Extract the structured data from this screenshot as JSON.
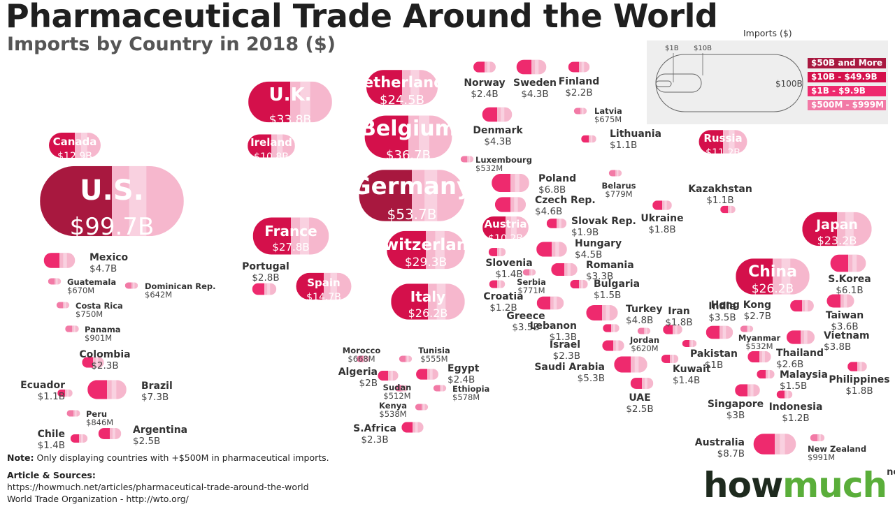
{
  "header": {
    "title": "Pharmaceutical Trade Around the World",
    "subtitle": "Imports by Country in 2018 ($)"
  },
  "legend": {
    "title": "Imports ($)",
    "scale_labels": [
      "$1B",
      "$10B",
      "$100B"
    ],
    "tiers": [
      {
        "label": "$50B and More",
        "color": "#a8183f"
      },
      {
        "label": "$10B - $49.9B",
        "color": "#d4104b"
      },
      {
        "label": "$1B - $9.9B",
        "color": "#ee2a6e"
      },
      {
        "label": "$500M - $999M",
        "color": "#f27aa6"
      }
    ]
  },
  "chart_data": {
    "type": "bubble-map",
    "title": "Pharmaceutical Trade Around the World",
    "subtitle": "Imports by Country in 2018 ($)",
    "unit": "USD billions",
    "series": [
      {
        "country": "U.S.",
        "label": "$99.7B",
        "value": 99.7
      },
      {
        "country": "Canada",
        "label": "$12.9B",
        "value": 12.9
      },
      {
        "country": "Mexico",
        "label": "$4.7B",
        "value": 4.7
      },
      {
        "country": "Guatemala",
        "label": "$670M",
        "value": 0.67
      },
      {
        "country": "Dominican Rep.",
        "label": "$642M",
        "value": 0.642
      },
      {
        "country": "Costa Rica",
        "label": "$750M",
        "value": 0.75
      },
      {
        "country": "Panama",
        "label": "$901M",
        "value": 0.901
      },
      {
        "country": "Colombia",
        "label": "$2.3B",
        "value": 2.3
      },
      {
        "country": "Ecuador",
        "label": "$1.1B",
        "value": 1.1
      },
      {
        "country": "Brazil",
        "label": "$7.3B",
        "value": 7.3
      },
      {
        "country": "Peru",
        "label": "$846M",
        "value": 0.846
      },
      {
        "country": "Chile",
        "label": "$1.4B",
        "value": 1.4
      },
      {
        "country": "Argentina",
        "label": "$2.5B",
        "value": 2.5
      },
      {
        "country": "U.K.",
        "label": "$33.8B",
        "value": 33.8
      },
      {
        "country": "Ireland",
        "label": "$10.8B",
        "value": 10.8
      },
      {
        "country": "Netherlands",
        "label": "$24.5B",
        "value": 24.5
      },
      {
        "country": "Belgium",
        "label": "$36.7B",
        "value": 36.7
      },
      {
        "country": "Germany",
        "label": "$53.7B",
        "value": 53.7
      },
      {
        "country": "France",
        "label": "$27.8B",
        "value": 27.8
      },
      {
        "country": "Portugal",
        "label": "$2.8B",
        "value": 2.8
      },
      {
        "country": "Spain",
        "label": "$14.7B",
        "value": 14.7
      },
      {
        "country": "Switzerland",
        "label": "$29.3B",
        "value": 29.3
      },
      {
        "country": "Italy",
        "label": "$26.2B",
        "value": 26.2
      },
      {
        "country": "Austria",
        "label": "$10.2B",
        "value": 10.2
      },
      {
        "country": "Luxembourg",
        "label": "$532M",
        "value": 0.532
      },
      {
        "country": "Norway",
        "label": "$2.4B",
        "value": 2.4
      },
      {
        "country": "Sweden",
        "label": "$4.3B",
        "value": 4.3
      },
      {
        "country": "Finland",
        "label": "$2.2B",
        "value": 2.2
      },
      {
        "country": "Denmark",
        "label": "$4.3B",
        "value": 4.3
      },
      {
        "country": "Latvia",
        "label": "$675M",
        "value": 0.675
      },
      {
        "country": "Lithuania",
        "label": "$1.1B",
        "value": 1.1
      },
      {
        "country": "Russia",
        "label": "$11.2B",
        "value": 11.2
      },
      {
        "country": "Poland",
        "label": "$6.8B",
        "value": 6.8
      },
      {
        "country": "Czech Rep.",
        "label": "$4.6B",
        "value": 4.6
      },
      {
        "country": "Belarus",
        "label": "$779M",
        "value": 0.779
      },
      {
        "country": "Kazakhstan",
        "label": "$1.1B",
        "value": 1.1
      },
      {
        "country": "Ukraine",
        "label": "$1.8B",
        "value": 1.8
      },
      {
        "country": "Slovak Rep.",
        "label": "$1.9B",
        "value": 1.9
      },
      {
        "country": "Hungary",
        "label": "$4.5B",
        "value": 4.5
      },
      {
        "country": "Slovenia",
        "label": "$1.4B",
        "value": 1.4
      },
      {
        "country": "Romania",
        "label": "$3.3B",
        "value": 3.3
      },
      {
        "country": "Serbia",
        "label": "$771M",
        "value": 0.771
      },
      {
        "country": "Bulgaria",
        "label": "$1.5B",
        "value": 1.5
      },
      {
        "country": "Croatia",
        "label": "$1.2B",
        "value": 1.2
      },
      {
        "country": "Greece",
        "label": "$3.5B",
        "value": 3.5
      },
      {
        "country": "Turkey",
        "label": "$4.8B",
        "value": 4.8
      },
      {
        "country": "Lebanon",
        "label": "$1.3B",
        "value": 1.3
      },
      {
        "country": "Israel",
        "label": "$2.3B",
        "value": 2.3
      },
      {
        "country": "Jordan",
        "label": "$620M",
        "value": 0.62
      },
      {
        "country": "Iran",
        "label": "$1.8B",
        "value": 1.8
      },
      {
        "country": "Saudi Arabia",
        "label": "$5.3B",
        "value": 5.3
      },
      {
        "country": "Kuwait",
        "label": "$1.4B",
        "value": 1.4
      },
      {
        "country": "UAE",
        "label": "$2.5B",
        "value": 2.5
      },
      {
        "country": "Pakistan",
        "label": "$1B",
        "value": 1.0
      },
      {
        "country": "India",
        "label": "$3.5B",
        "value": 3.5
      },
      {
        "country": "China",
        "label": "$26.2B",
        "value": 26.2
      },
      {
        "country": "Japan",
        "label": "$23.2B",
        "value": 23.2
      },
      {
        "country": "S.Korea",
        "label": "$6.1B",
        "value": 6.1
      },
      {
        "country": "Hong Kong",
        "label": "$2.7B",
        "value": 2.7
      },
      {
        "country": "Taiwan",
        "label": "$3.6B",
        "value": 3.6
      },
      {
        "country": "Myanmar",
        "label": "$532M",
        "value": 0.532
      },
      {
        "country": "Vietnam",
        "label": "$3.8B",
        "value": 3.8
      },
      {
        "country": "Thailand",
        "label": "$2.6B",
        "value": 2.6
      },
      {
        "country": "Malaysia",
        "label": "$1.5B",
        "value": 1.5
      },
      {
        "country": "Philippines",
        "label": "$1.8B",
        "value": 1.8
      },
      {
        "country": "Singapore",
        "label": "$3B",
        "value": 3.0
      },
      {
        "country": "Indonesia",
        "label": "$1.2B",
        "value": 1.2
      },
      {
        "country": "Australia",
        "label": "$8.7B",
        "value": 8.7
      },
      {
        "country": "New Zealand",
        "label": "$991M",
        "value": 0.991
      },
      {
        "country": "Morocco",
        "label": "$668M",
        "value": 0.668
      },
      {
        "country": "Tunisia",
        "label": "$555M",
        "value": 0.555
      },
      {
        "country": "Algeria",
        "label": "$2B",
        "value": 2.0
      },
      {
        "country": "Egypt",
        "label": "$2.4B",
        "value": 2.4
      },
      {
        "country": "Sudan",
        "label": "$512M",
        "value": 0.512
      },
      {
        "country": "Ethiopia",
        "label": "$578M",
        "value": 0.578
      },
      {
        "country": "Kenya",
        "label": "$538M",
        "value": 0.538
      },
      {
        "country": "S.Africa",
        "label": "$2.3B",
        "value": 2.3
      }
    ]
  },
  "footer": {
    "note_label": "Note:",
    "note_text": "Only displaying countries with +$500M in pharmaceutical imports.",
    "sources_label": "Article & Sources:",
    "source_1": "https://howmuch.net/articles/pharmaceutical-trade-around-the-world",
    "source_2": "World Trade Organization - http://wto.org/"
  },
  "logo": {
    "part1": "how",
    "part2": "much",
    "suffix": "net"
  }
}
